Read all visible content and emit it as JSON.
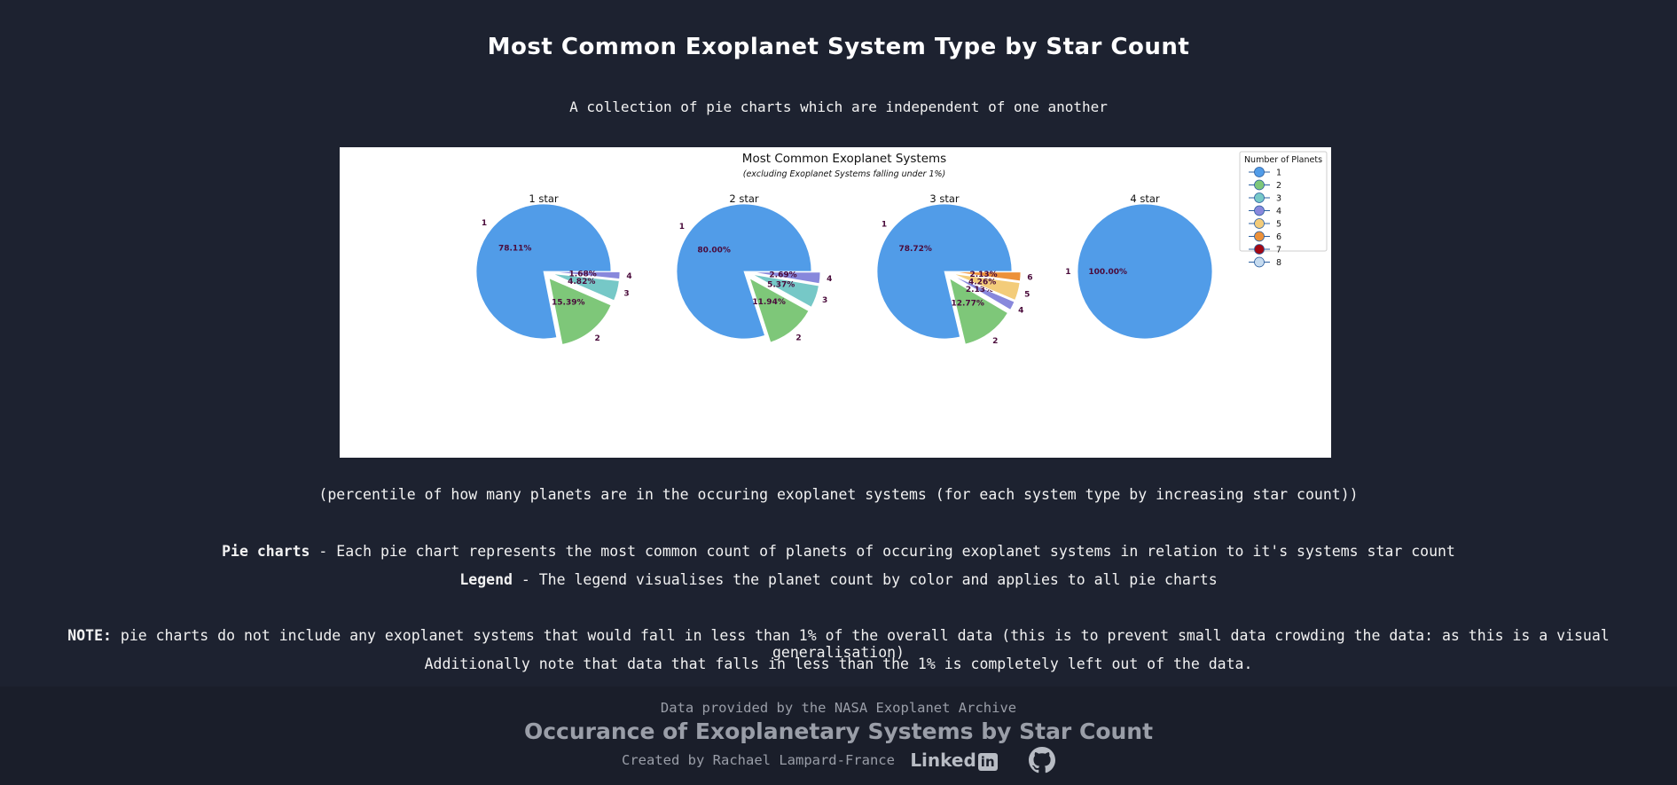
{
  "page": {
    "title": "Most Common Exoplanet System Type by Star Count",
    "subtitle": "A collection of pie charts which are independent of one another",
    "caption": "(percentile of how many planets are in the occuring exoplanet systems (for each system type by increasing star count))",
    "descriptions": [
      {
        "term": "Pie charts",
        "text": " - Each pie chart represents the most common count of planets of occuring exoplanet systems in relation to it's systems star count"
      },
      {
        "term": "Legend",
        "text": " - The legend visualises the planet count by color and applies to all pie charts"
      }
    ],
    "note": {
      "term": "NOTE:",
      "text": " pie charts do not include any exoplanet systems that would fall in less than 1% of the overall data (this is to prevent small data crowding the data: as this is a visual generalisation)",
      "text2": "Additionally note that data that falls in less than the 1% is completely left out of the data."
    }
  },
  "footer": {
    "source": "Data provided by the NASA Exoplanet Archive",
    "title": "Occurance of Exoplanetary Systems by Star Count",
    "credit": "Created by Rachael Lampard-France",
    "linkedin_text": "Linked",
    "linkedin_box": "in",
    "icons": [
      "linkedin-icon",
      "github-icon"
    ]
  },
  "chart_data": {
    "type": "pie",
    "title": "Most Common Exoplanet Systems",
    "subtitle": "(excluding Exoplanet Systems falling under 1%)",
    "legend": {
      "title": "Number of Planets",
      "placement": "top-right",
      "entries": [
        {
          "label": "1",
          "color": "#519ce8"
        },
        {
          "label": "2",
          "color": "#7ec779"
        },
        {
          "label": "3",
          "color": "#76c8c7"
        },
        {
          "label": "4",
          "color": "#8888dc"
        },
        {
          "label": "5",
          "color": "#f3cc7a"
        },
        {
          "label": "6",
          "color": "#ec913a"
        },
        {
          "label": "7",
          "color": "#a30814"
        },
        {
          "label": "8",
          "color": "#c6dbef"
        }
      ]
    },
    "charts": [
      {
        "title": "1 star",
        "slices": [
          {
            "label": "1",
            "value": 78.11,
            "pct": "78.11%"
          },
          {
            "label": "2",
            "value": 15.39,
            "pct": "15.39%"
          },
          {
            "label": "3",
            "value": 4.82,
            "pct": "4.82%"
          },
          {
            "label": "4",
            "value": 1.68,
            "pct": "1.68%"
          }
        ]
      },
      {
        "title": "2 star",
        "slices": [
          {
            "label": "1",
            "value": 80.0,
            "pct": "80.00%"
          },
          {
            "label": "2",
            "value": 11.94,
            "pct": "11.94%"
          },
          {
            "label": "3",
            "value": 5.37,
            "pct": "5.37%"
          },
          {
            "label": "4",
            "value": 2.69,
            "pct": "2.69%"
          }
        ]
      },
      {
        "title": "3 star",
        "slices": [
          {
            "label": "1",
            "value": 78.72,
            "pct": "78.72%"
          },
          {
            "label": "2",
            "value": 12.77,
            "pct": "12.77%"
          },
          {
            "label": "4",
            "value": 2.13,
            "pct": "2.13%"
          },
          {
            "label": "5",
            "value": 4.26,
            "pct": "4.26%"
          },
          {
            "label": "6",
            "value": 2.13,
            "pct": "2.13%"
          }
        ]
      },
      {
        "title": "4 star",
        "slices": [
          {
            "label": "1",
            "value": 100.0,
            "pct": "100.00%"
          }
        ]
      }
    ]
  }
}
